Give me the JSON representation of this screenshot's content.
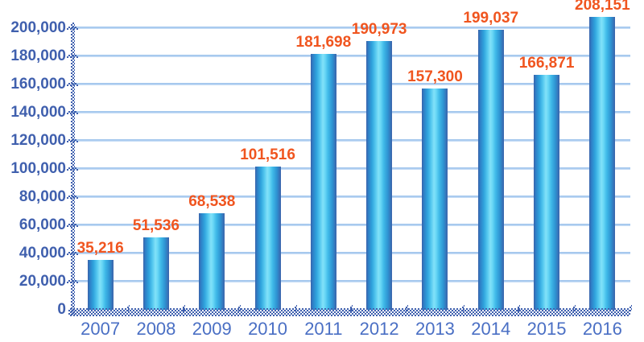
{
  "chart_data": {
    "type": "bar",
    "title": "",
    "xlabel": "",
    "ylabel": "",
    "categories": [
      "2007",
      "2008",
      "2009",
      "2010",
      "2011",
      "2012",
      "2013",
      "2014",
      "2015",
      "2016"
    ],
    "values": [
      35216,
      51536,
      68538,
      101516,
      181698,
      190973,
      157300,
      199037,
      166871,
      208151
    ],
    "value_labels": [
      "35,216",
      "51,536",
      "68,538",
      "101,516",
      "181,698",
      "190,973",
      "157,300",
      "199,037",
      "166,871",
      "208,151"
    ],
    "y_ticks": [
      0,
      20000,
      40000,
      60000,
      80000,
      100000,
      120000,
      140000,
      160000,
      180000,
      200000
    ],
    "y_tick_labels": [
      "0",
      "20,000",
      "40,000",
      "60,000",
      "80,000",
      "100,000",
      "120,000",
      "140,000",
      "160,000",
      "180,000",
      "200,000"
    ],
    "ylim": [
      0,
      208600
    ],
    "grid": "horizontal",
    "legend": "none"
  },
  "colors": {
    "background": "#ffffff",
    "bar_edge": "#3b63ab",
    "bar_highlight": "#82e1f8",
    "value_label": "#f0551f",
    "y_label": "#4060ae",
    "x_label": "#4a6fc4",
    "gridline": "#9dc3ec",
    "axis_pattern": "#3e5fae"
  }
}
